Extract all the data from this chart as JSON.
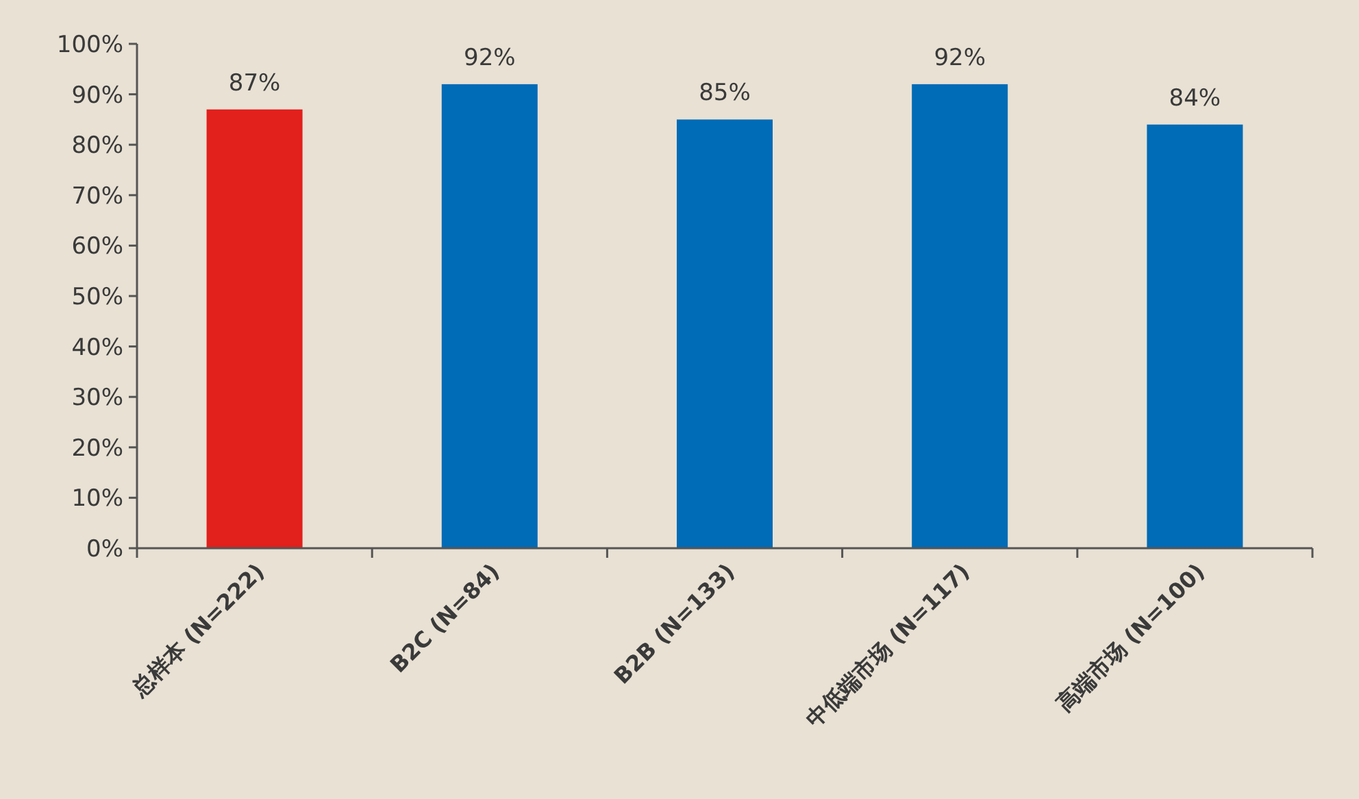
{
  "chart_data": {
    "type": "bar",
    "categories": [
      "总样本 (N=222)",
      "B2C (N=84)",
      "B2B (N=133)",
      "中低端市场 (N=117)",
      "高端市场 (N=100)"
    ],
    "values": [
      87,
      92,
      85,
      92,
      84
    ],
    "colors": [
      "#e2201c",
      "#006bb7",
      "#006bb7",
      "#006bb7",
      "#006bb7"
    ],
    "value_labels": [
      "87%",
      "92%",
      "85%",
      "92%",
      "84%"
    ],
    "ylim": [
      0,
      100
    ],
    "yticks": [
      {
        "value": 0,
        "label": "0%"
      },
      {
        "value": 10,
        "label": "10%"
      },
      {
        "value": 20,
        "label": "20%"
      },
      {
        "value": 30,
        "label": "30%"
      },
      {
        "value": 40,
        "label": "40%"
      },
      {
        "value": 50,
        "label": "50%"
      },
      {
        "value": 60,
        "label": "60%"
      },
      {
        "value": 70,
        "label": "70%"
      },
      {
        "value": 80,
        "label": "80%"
      },
      {
        "value": 90,
        "label": "90%"
      },
      {
        "value": 100,
        "label": "100%"
      }
    ],
    "grid": false
  }
}
